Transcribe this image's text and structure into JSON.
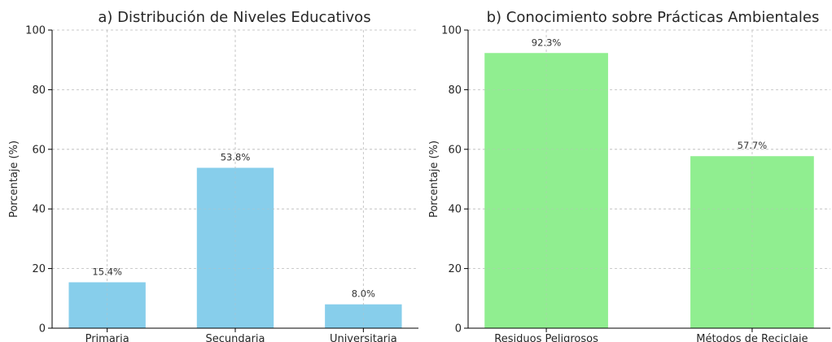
{
  "chart_data": [
    {
      "type": "bar",
      "title": "a) Distribución de Niveles Educativos",
      "xlabel": "",
      "ylabel": "Porcentaje (%)",
      "ylim": [
        0,
        100
      ],
      "yticks": [
        0,
        20,
        40,
        60,
        80,
        100
      ],
      "grid": true,
      "categories": [
        "Primaria",
        "Secundaria",
        "Universitaria"
      ],
      "values": [
        15.4,
        53.8,
        8.0
      ],
      "data_labels": [
        "15.4%",
        "53.8%",
        "8.0%"
      ],
      "color": "#87CEEB"
    },
    {
      "type": "bar",
      "title": "b) Conocimiento sobre Prácticas Ambientales",
      "xlabel": "",
      "ylabel": "Porcentaje (%)",
      "ylim": [
        0,
        100
      ],
      "yticks": [
        0,
        20,
        40,
        60,
        80,
        100
      ],
      "grid": true,
      "categories": [
        "Residuos Peligrosos",
        "Métodos de Reciclaje"
      ],
      "values": [
        92.3,
        57.7
      ],
      "data_labels": [
        "92.3%",
        "57.7%"
      ],
      "color": "#90EE90"
    }
  ]
}
